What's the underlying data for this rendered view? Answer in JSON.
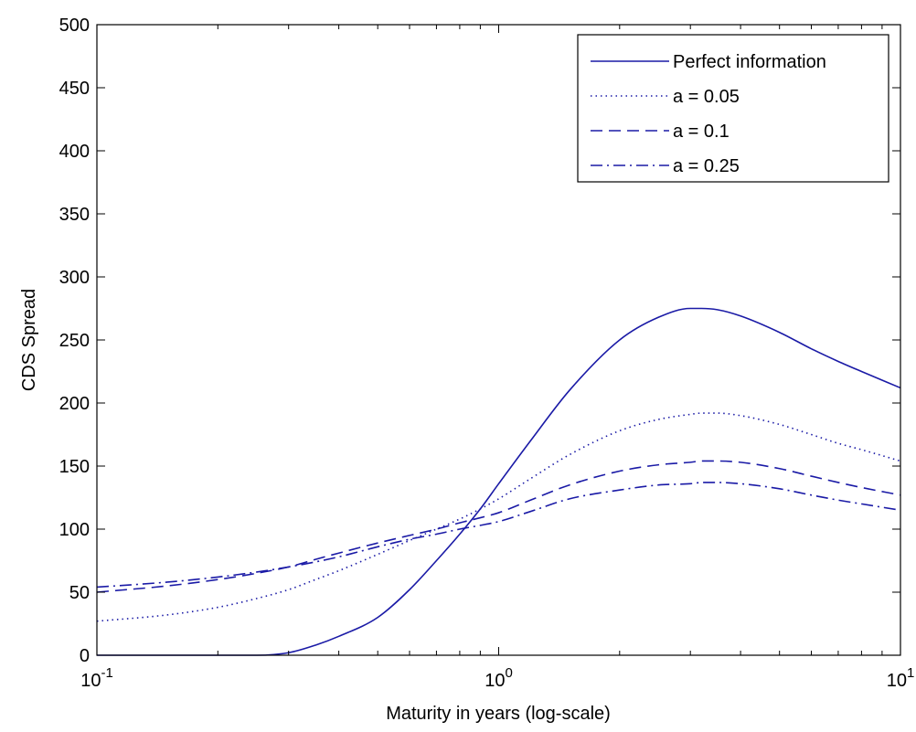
{
  "chart_data": {
    "type": "line",
    "title": "",
    "xlabel": "Maturity in years (log-scale)",
    "ylabel": "CDS Spread",
    "xscale": "log",
    "xlim": [
      0.1,
      10
    ],
    "ylim": [
      0,
      500
    ],
    "grid": false,
    "legend_position": "top-right",
    "color": "#1a1aa6",
    "x_ticks": [
      {
        "value": 0.1,
        "base": "10",
        "exp": "-1"
      },
      {
        "value": 1,
        "base": "10",
        "exp": "0"
      },
      {
        "value": 10,
        "base": "10",
        "exp": "1"
      }
    ],
    "y_ticks": [
      0,
      50,
      100,
      150,
      200,
      250,
      300,
      350,
      400,
      450,
      500
    ],
    "x": [
      0.1,
      0.15,
      0.2,
      0.25,
      0.3,
      0.35,
      0.4,
      0.5,
      0.6,
      0.7,
      0.8,
      0.9,
      1.0,
      1.2,
      1.5,
      2.0,
      2.5,
      3.0,
      3.2,
      3.5,
      4.0,
      5.0,
      6.0,
      7.0,
      8.0,
      10.0
    ],
    "series": [
      {
        "name": "Perfect information",
        "style": "solid",
        "values": [
          0,
          0,
          0,
          0,
          2,
          8,
          15,
          30,
          52,
          75,
          96,
          116,
          136,
          170,
          210,
          250,
          268,
          275,
          275,
          274,
          269,
          256,
          243,
          233,
          225,
          212
        ]
      },
      {
        "name": "a = 0.05",
        "style": "dotted",
        "values": [
          27,
          32,
          38,
          45,
          52,
          60,
          67,
          80,
          91,
          100,
          108,
          116,
          124,
          140,
          159,
          178,
          187,
          191,
          192,
          192,
          190,
          183,
          175,
          168,
          163,
          154
        ]
      },
      {
        "name": "a = 0.1",
        "style": "dashed",
        "values": [
          50,
          55,
          60,
          65,
          70,
          76,
          81,
          89,
          95,
          100,
          105,
          109,
          113,
          123,
          135,
          146,
          151,
          153,
          154,
          154,
          153,
          148,
          142,
          137,
          133,
          127
        ]
      },
      {
        "name": "a = 0.25",
        "style": "dashdot",
        "values": [
          54,
          58,
          62,
          66,
          70,
          74,
          78,
          86,
          92,
          96,
          100,
          103,
          106,
          114,
          124,
          131,
          135,
          136,
          137,
          137,
          136,
          132,
          127,
          123,
          120,
          115
        ]
      }
    ]
  }
}
